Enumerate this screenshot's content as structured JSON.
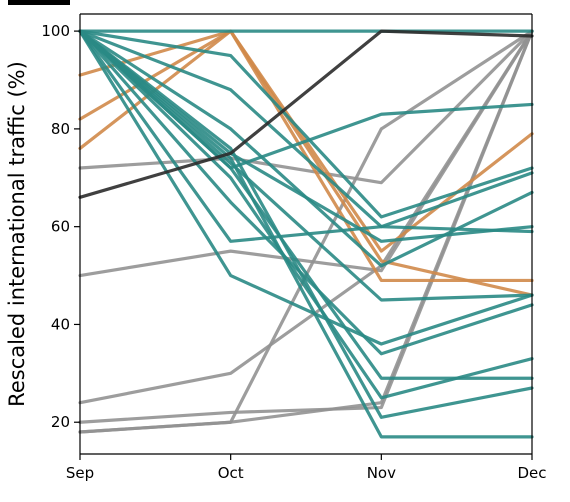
{
  "chart_data": {
    "type": "line",
    "ylabel": "Rescaled international traffic (%)",
    "xlabel": "",
    "categories": [
      "Sep",
      "Oct",
      "Nov",
      "Dec"
    ],
    "yticks": [
      20,
      40,
      60,
      80,
      100
    ],
    "ylim": [
      13.5,
      103.5
    ],
    "grid": false,
    "legend": "none",
    "colors": {
      "teal": "#2a8a85",
      "orange": "#d08a4a",
      "gray": "#929292",
      "dark": "#2b2b2b"
    },
    "series": [
      {
        "group": "teal",
        "values": [
          100,
          100,
          100,
          100
        ]
      },
      {
        "group": "teal",
        "values": [
          100,
          95,
          62,
          72
        ]
      },
      {
        "group": "teal",
        "values": [
          100,
          88,
          60,
          59
        ]
      },
      {
        "group": "teal",
        "values": [
          100,
          57,
          60,
          71
        ]
      },
      {
        "group": "teal",
        "values": [
          100,
          50,
          36,
          46
        ]
      },
      {
        "group": "teal",
        "values": [
          100,
          75,
          57,
          60
        ]
      },
      {
        "group": "teal",
        "values": [
          100,
          73,
          45,
          46
        ]
      },
      {
        "group": "teal",
        "values": [
          100,
          72,
          83,
          85
        ]
      },
      {
        "group": "teal",
        "values": [
          100,
          65,
          34,
          44
        ]
      },
      {
        "group": "teal",
        "values": [
          100,
          72,
          29,
          29
        ]
      },
      {
        "group": "teal",
        "values": [
          100,
          70,
          25,
          33
        ]
      },
      {
        "group": "teal",
        "values": [
          100,
          76,
          21,
          27
        ]
      },
      {
        "group": "teal",
        "values": [
          100,
          74,
          17,
          17
        ]
      },
      {
        "group": "teal",
        "values": [
          100,
          80,
          52,
          67
        ]
      },
      {
        "group": "orange",
        "values": [
          91,
          100,
          49,
          49
        ]
      },
      {
        "group": "orange",
        "values": [
          82,
          100,
          55,
          79
        ]
      },
      {
        "group": "orange",
        "values": [
          76,
          100,
          53,
          46
        ]
      },
      {
        "group": "gray",
        "values": [
          72,
          74,
          69,
          100
        ]
      },
      {
        "group": "gray",
        "values": [
          50,
          55,
          51,
          100
        ]
      },
      {
        "group": "gray",
        "values": [
          24,
          30,
          52,
          100
        ]
      },
      {
        "group": "gray",
        "values": [
          20,
          22,
          23,
          100
        ]
      },
      {
        "group": "gray",
        "values": [
          18,
          20,
          80,
          100
        ]
      },
      {
        "group": "gray",
        "values": [
          18,
          20,
          24,
          100
        ]
      },
      {
        "group": "dark",
        "values": [
          66,
          75,
          100,
          99
        ]
      }
    ]
  }
}
